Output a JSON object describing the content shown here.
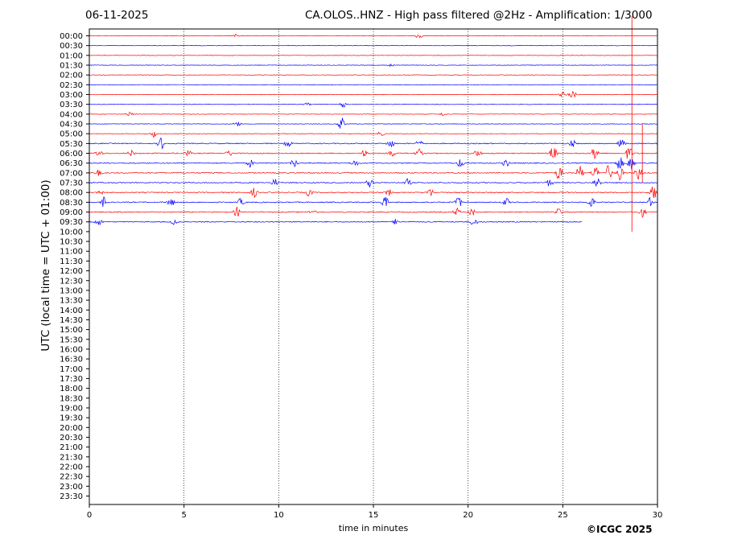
{
  "header": {
    "date": "06-11-2025",
    "title": "CA.OLOS..HNZ - High pass filtered @2Hz - Amplification: 1/3000"
  },
  "footer": {
    "copyright": "©ICGC 2025"
  },
  "chart_data": {
    "type": "line",
    "title": "CA.OLOS..HNZ - High pass filtered @2Hz - Amplification: 1/3000",
    "xlabel": "time in minutes",
    "ylabel": "UTC (local time = UTC + 01:00)",
    "xlim": [
      0,
      30
    ],
    "xticks": [
      0,
      5,
      10,
      15,
      20,
      25,
      30
    ],
    "vertical_gridlines": [
      5,
      10,
      15,
      20,
      25
    ],
    "yticks": [
      "00:00",
      "00:30",
      "01:00",
      "01:30",
      "02:00",
      "02:30",
      "03:00",
      "03:30",
      "04:00",
      "04:30",
      "05:00",
      "05:30",
      "06:00",
      "06:30",
      "07:00",
      "07:30",
      "08:00",
      "08:30",
      "09:00",
      "09:30",
      "10:00",
      "10:30",
      "11:00",
      "11:30",
      "12:00",
      "12:30",
      "13:00",
      "13:30",
      "14:00",
      "14:30",
      "15:00",
      "15:30",
      "16:00",
      "16:30",
      "17:00",
      "17:30",
      "18:00",
      "18:30",
      "19:00",
      "19:30",
      "20:00",
      "20:30",
      "21:00",
      "21:30",
      "22:00",
      "22:30",
      "23:00",
      "23:30"
    ],
    "trace_colors": [
      "#ff0000",
      "#0000ff"
    ],
    "recorded_traces": 20,
    "last_trace_end_minute": 26,
    "events": [
      {
        "row": 0,
        "minute": 7.8,
        "amp": 0.25
      },
      {
        "row": 0,
        "minute": 17.4,
        "amp": 0.35
      },
      {
        "row": 3,
        "minute": 15.9,
        "amp": 0.15
      },
      {
        "row": 6,
        "minute": 25.5,
        "amp": 0.6
      },
      {
        "row": 6,
        "minute": 25.0,
        "amp": 0.35
      },
      {
        "row": 7,
        "minute": 13.4,
        "amp": 0.45
      },
      {
        "row": 7,
        "minute": 11.5,
        "amp": 0.2
      },
      {
        "row": 8,
        "minute": 2.1,
        "amp": 0.35
      },
      {
        "row": 8,
        "minute": 18.7,
        "amp": 0.25
      },
      {
        "row": 9,
        "minute": 7.8,
        "amp": 0.4
      },
      {
        "row": 9,
        "minute": 13.3,
        "amp": 1.0
      },
      {
        "row": 10,
        "minute": 3.4,
        "amp": 0.45
      },
      {
        "row": 10,
        "minute": 15.4,
        "amp": 0.3
      },
      {
        "row": 11,
        "minute": 3.8,
        "amp": 0.8
      },
      {
        "row": 11,
        "minute": 10.5,
        "amp": 0.5
      },
      {
        "row": 11,
        "minute": 15.9,
        "amp": 0.6
      },
      {
        "row": 11,
        "minute": 17.4,
        "amp": 0.5
      },
      {
        "row": 11,
        "minute": 25.5,
        "amp": 0.5
      },
      {
        "row": 11,
        "minute": 28.1,
        "amp": 0.6
      },
      {
        "row": 12,
        "minute": 0.5,
        "amp": 0.5
      },
      {
        "row": 12,
        "minute": 2.2,
        "amp": 0.4
      },
      {
        "row": 12,
        "minute": 5.2,
        "amp": 0.4
      },
      {
        "row": 12,
        "minute": 7.4,
        "amp": 0.4
      },
      {
        "row": 12,
        "minute": 14.5,
        "amp": 0.5
      },
      {
        "row": 12,
        "minute": 16.0,
        "amp": 0.4
      },
      {
        "row": 12,
        "minute": 17.4,
        "amp": 0.6
      },
      {
        "row": 12,
        "minute": 20.5,
        "amp": 0.5
      },
      {
        "row": 12,
        "minute": 24.5,
        "amp": 1.0
      },
      {
        "row": 12,
        "minute": 26.7,
        "amp": 1.0
      },
      {
        "row": 12,
        "minute": 28.5,
        "amp": 1.0
      },
      {
        "row": 13,
        "minute": 8.5,
        "amp": 0.5
      },
      {
        "row": 13,
        "minute": 10.8,
        "amp": 0.6
      },
      {
        "row": 13,
        "minute": 14.0,
        "amp": 0.5
      },
      {
        "row": 13,
        "minute": 19.6,
        "amp": 0.6
      },
      {
        "row": 13,
        "minute": 22.0,
        "amp": 0.5
      },
      {
        "row": 13,
        "minute": 28.0,
        "amp": 1.0
      },
      {
        "row": 13,
        "minute": 28.6,
        "amp": 1.0
      },
      {
        "row": 14,
        "minute": 0.5,
        "amp": 0.4
      },
      {
        "row": 14,
        "minute": 24.8,
        "amp": 1.0
      },
      {
        "row": 14,
        "minute": 25.9,
        "amp": 1.0
      },
      {
        "row": 14,
        "minute": 26.7,
        "amp": 1.0
      },
      {
        "row": 14,
        "minute": 27.4,
        "amp": 1.0
      },
      {
        "row": 14,
        "minute": 28.0,
        "amp": 1.0
      },
      {
        "row": 14,
        "minute": 29.0,
        "amp": 1.0
      },
      {
        "row": 15,
        "minute": 9.8,
        "amp": 0.5
      },
      {
        "row": 15,
        "minute": 14.8,
        "amp": 0.6
      },
      {
        "row": 15,
        "minute": 16.8,
        "amp": 0.5
      },
      {
        "row": 15,
        "minute": 24.3,
        "amp": 0.5
      },
      {
        "row": 15,
        "minute": 26.8,
        "amp": 0.8
      },
      {
        "row": 16,
        "minute": 0.5,
        "amp": 0.6
      },
      {
        "row": 16,
        "minute": 8.7,
        "amp": 0.6
      },
      {
        "row": 16,
        "minute": 11.6,
        "amp": 0.5
      },
      {
        "row": 16,
        "minute": 15.8,
        "amp": 0.5
      },
      {
        "row": 16,
        "minute": 18.0,
        "amp": 0.5
      },
      {
        "row": 16,
        "minute": 29.8,
        "amp": 1.0
      },
      {
        "row": 17,
        "minute": 0.8,
        "amp": 0.8
      },
      {
        "row": 17,
        "minute": 4.3,
        "amp": 0.6
      },
      {
        "row": 17,
        "minute": 8.0,
        "amp": 0.5
      },
      {
        "row": 17,
        "minute": 15.6,
        "amp": 0.8
      },
      {
        "row": 17,
        "minute": 19.5,
        "amp": 0.8
      },
      {
        "row": 17,
        "minute": 22.0,
        "amp": 0.6
      },
      {
        "row": 17,
        "minute": 26.5,
        "amp": 0.7
      },
      {
        "row": 17,
        "minute": 29.6,
        "amp": 0.6
      },
      {
        "row": 18,
        "minute": 7.8,
        "amp": 0.6
      },
      {
        "row": 18,
        "minute": 11.8,
        "amp": 0.4
      },
      {
        "row": 18,
        "minute": 19.4,
        "amp": 0.5
      },
      {
        "row": 18,
        "minute": 20.2,
        "amp": 0.5
      },
      {
        "row": 18,
        "minute": 24.8,
        "amp": 0.5
      },
      {
        "row": 18,
        "minute": 29.2,
        "amp": 0.6
      },
      {
        "row": 19,
        "minute": 0.5,
        "amp": 0.5
      },
      {
        "row": 19,
        "minute": 4.5,
        "amp": 0.4
      },
      {
        "row": 19,
        "minute": 16.2,
        "amp": 0.4
      },
      {
        "row": 19,
        "minute": 20.3,
        "amp": 0.6
      }
    ],
    "spikes": [
      {
        "row": 0,
        "minute": 28.65,
        "amp_up": 2.0,
        "amp_down": 20
      },
      {
        "row": 12,
        "minute": 29.2,
        "amp_up": 3,
        "amp_down": 3
      }
    ]
  }
}
